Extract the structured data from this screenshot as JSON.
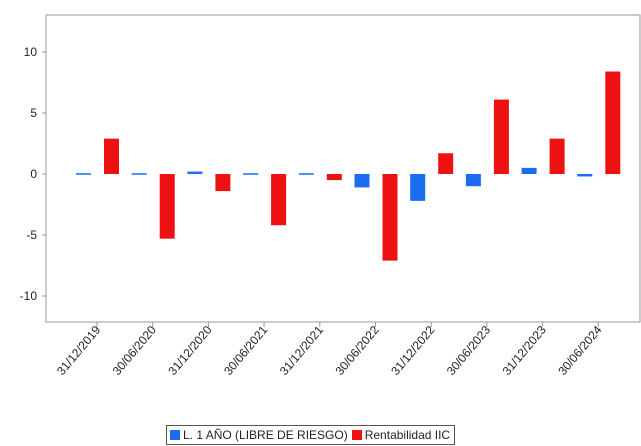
{
  "chart_data": {
    "type": "bar",
    "categories": [
      "31/12/2019",
      "30/06/2020",
      "31/12/2020",
      "30/06/2021",
      "31/12/2021",
      "30/06/2022",
      "31/12/2022",
      "30/06/2023",
      "31/12/2023",
      "30/06/2024"
    ],
    "series": [
      {
        "name": "L. 1 AÑO (LIBRE DE RIESGO)",
        "color": "#1a6cf0",
        "values": [
          -0.1,
          -0.1,
          0.2,
          -0.1,
          0.0,
          -1.1,
          -2.2,
          -1.0,
          0.5,
          -0.2
        ]
      },
      {
        "name": "Rentabilidad IIC",
        "color": "#ee1111",
        "values": [
          2.9,
          -5.3,
          -1.4,
          -4.2,
          -0.5,
          -7.1,
          1.7,
          6.1,
          2.9,
          8.4
        ]
      }
    ],
    "yticks": [
      10,
      5,
      0,
      -5,
      -10
    ],
    "ylim": [
      -12,
      13
    ],
    "title": "",
    "xlabel": "",
    "ylabel": "",
    "grid": false,
    "legend_position": "bottom"
  }
}
